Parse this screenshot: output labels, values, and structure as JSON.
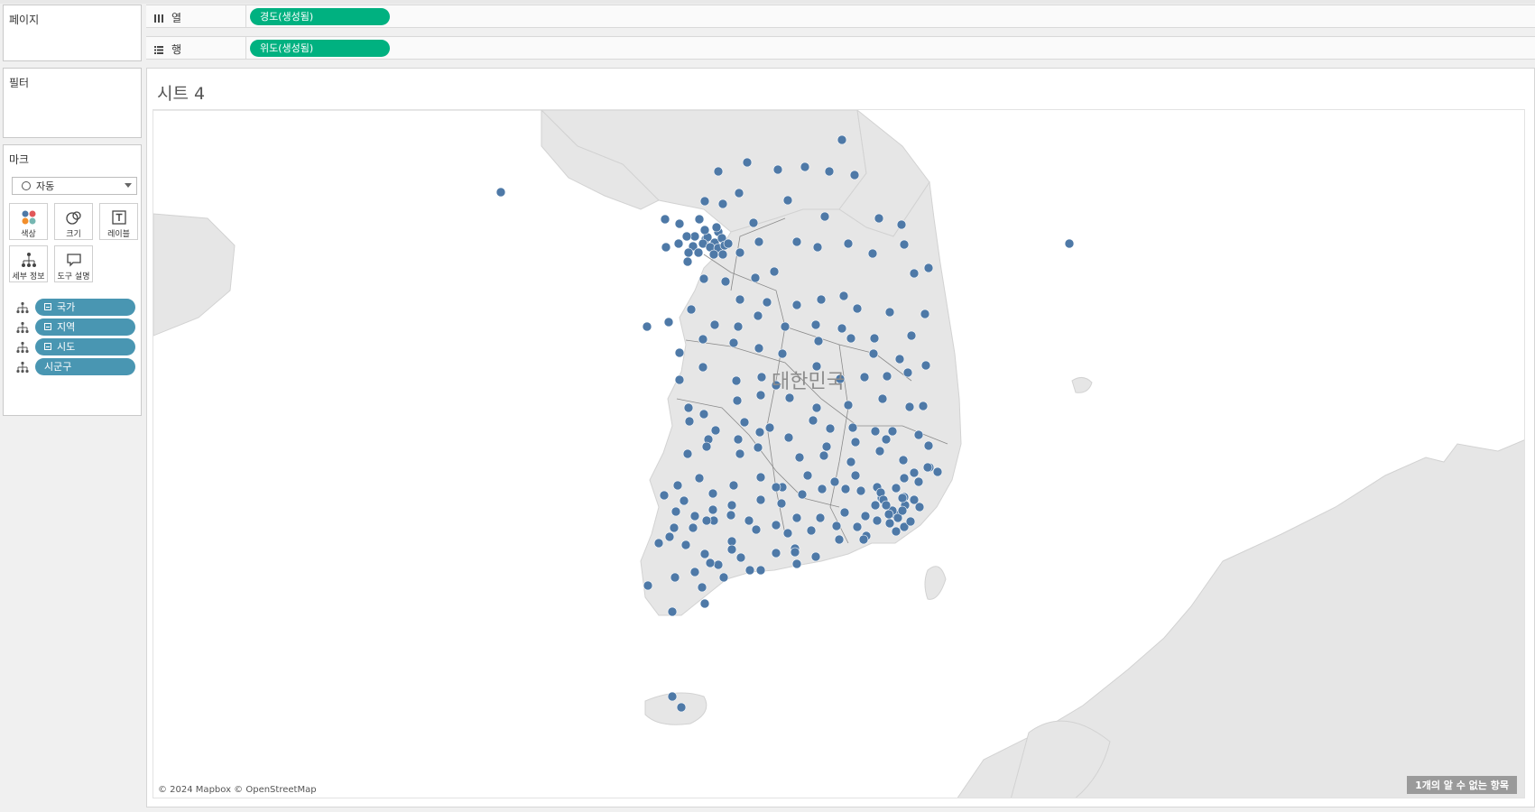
{
  "cards": {
    "pages_label": "페이지",
    "filters_label": "필터",
    "marks_label": "마크"
  },
  "shelves": {
    "columns_label": "열",
    "columns_field": "경도(생성됨)",
    "rows_label": "행",
    "rows_field": "위도(생성됨)",
    "field_color": "#00b180"
  },
  "marks": {
    "type": "자동",
    "buttons": [
      {
        "label": "색상",
        "icon": "color-icon"
      },
      {
        "label": "크기",
        "icon": "size-icon"
      },
      {
        "label": "레이블",
        "icon": "label-icon"
      },
      {
        "label": "세부 정보",
        "icon": "detail-icon"
      },
      {
        "label": "도구 설명",
        "icon": "tooltip-icon"
      }
    ],
    "fields": [
      {
        "label": "국가",
        "collapsible": true
      },
      {
        "label": "지역",
        "collapsible": true
      },
      {
        "label": "시도",
        "collapsible": true
      },
      {
        "label": "시군구",
        "collapsible": false
      }
    ],
    "field_color": "#4996b2"
  },
  "sheet": {
    "title": "시트 4",
    "country_label": "대한민국",
    "credit": "© 2024 Mapbox © OpenStreetMap",
    "unknown_items": "1개의 알 수 없는 항목",
    "mark_color": "#4e79a7",
    "land_color": "#e6e6e6",
    "water_color": "#ffffff"
  }
}
